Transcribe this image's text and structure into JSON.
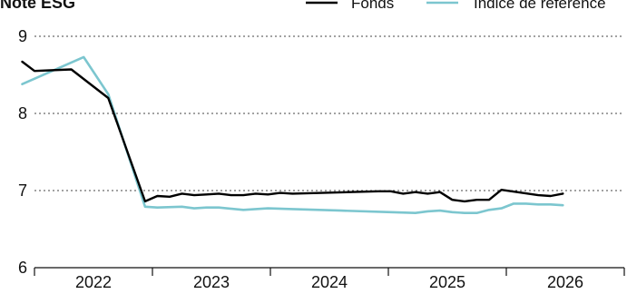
{
  "chart_data": {
    "type": "line",
    "title": "Note ESG",
    "xlabel": "",
    "ylabel": "",
    "ylim": [
      6,
      9
    ],
    "xlim": [
      2022.0,
      2026.0
    ],
    "y_ticks": [
      "6",
      "7",
      "8",
      "9"
    ],
    "x_ticks": [
      "2022",
      "2023",
      "2024",
      "2025",
      "2026"
    ],
    "grid": "horizontal-dotted",
    "legend_position": "top-right",
    "series": [
      {
        "name": "Fonds",
        "color": "#000000",
        "points": [
          {
            "x": "2021-12",
            "y": 8.67
          },
          {
            "x": "2022-01",
            "y": 8.55
          },
          {
            "x": "2022-04",
            "y": 8.57
          },
          {
            "x": "2022-07",
            "y": 8.2
          },
          {
            "x": "2022-10",
            "y": 6.86
          },
          {
            "x": "2022-11",
            "y": 6.93
          },
          {
            "x": "2022-12",
            "y": 6.92
          },
          {
            "x": "2023-01",
            "y": 6.96
          },
          {
            "x": "2023-02",
            "y": 6.94
          },
          {
            "x": "2023-03",
            "y": 6.95
          },
          {
            "x": "2023-04",
            "y": 6.96
          },
          {
            "x": "2023-05",
            "y": 6.94
          },
          {
            "x": "2023-06",
            "y": 6.94
          },
          {
            "x": "2023-07",
            "y": 6.96
          },
          {
            "x": "2023-08",
            "y": 6.95
          },
          {
            "x": "2023-09",
            "y": 6.97
          },
          {
            "x": "2023-10",
            "y": 6.96
          },
          {
            "x": "2024-05",
            "y": 6.99
          },
          {
            "x": "2024-06",
            "y": 6.99
          },
          {
            "x": "2024-07",
            "y": 6.96
          },
          {
            "x": "2024-08",
            "y": 6.98
          },
          {
            "x": "2024-09",
            "y": 6.96
          },
          {
            "x": "2024-10",
            "y": 6.98
          },
          {
            "x": "2024-11",
            "y": 6.88
          },
          {
            "x": "2024-12",
            "y": 6.86
          },
          {
            "x": "2025-01",
            "y": 6.88
          },
          {
            "x": "2025-02",
            "y": 6.88
          },
          {
            "x": "2025-03",
            "y": 7.01
          },
          {
            "x": "2025-06",
            "y": 6.94
          },
          {
            "x": "2025-07",
            "y": 6.93
          },
          {
            "x": "2025-08",
            "y": 6.96
          }
        ]
      },
      {
        "name": "Indice de référence",
        "color": "#7cc6cf",
        "points": [
          {
            "x": "2021-12",
            "y": 8.38
          },
          {
            "x": "2022-05",
            "y": 8.73
          },
          {
            "x": "2022-07",
            "y": 8.25
          },
          {
            "x": "2022-10",
            "y": 6.79
          },
          {
            "x": "2022-11",
            "y": 6.78
          },
          {
            "x": "2023-01",
            "y": 6.79
          },
          {
            "x": "2023-02",
            "y": 6.77
          },
          {
            "x": "2023-03",
            "y": 6.78
          },
          {
            "x": "2023-04",
            "y": 6.78
          },
          {
            "x": "2023-06",
            "y": 6.75
          },
          {
            "x": "2023-08",
            "y": 6.77
          },
          {
            "x": "2023-10",
            "y": 6.76
          },
          {
            "x": "2024-02",
            "y": 6.74
          },
          {
            "x": "2024-06",
            "y": 6.72
          },
          {
            "x": "2024-08",
            "y": 6.71
          },
          {
            "x": "2024-09",
            "y": 6.73
          },
          {
            "x": "2024-10",
            "y": 6.74
          },
          {
            "x": "2024-11",
            "y": 6.72
          },
          {
            "x": "2024-12",
            "y": 6.71
          },
          {
            "x": "2025-01",
            "y": 6.71
          },
          {
            "x": "2025-02",
            "y": 6.75
          },
          {
            "x": "2025-03",
            "y": 6.77
          },
          {
            "x": "2025-04",
            "y": 6.83
          },
          {
            "x": "2025-05",
            "y": 6.83
          },
          {
            "x": "2025-06",
            "y": 6.82
          },
          {
            "x": "2025-07",
            "y": 6.82
          },
          {
            "x": "2025-08",
            "y": 6.81
          }
        ]
      }
    ]
  }
}
